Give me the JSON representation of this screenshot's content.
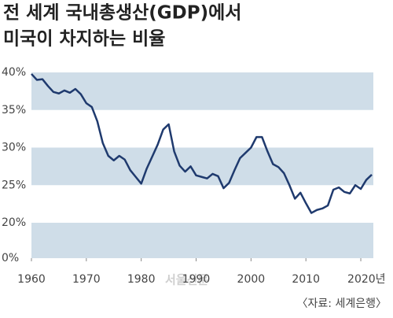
{
  "chart_data": {
    "type": "line",
    "title": [
      "전 세계 국내총생산(GDP)에서",
      "미국이 차지하는 비율"
    ],
    "source": "〈자료: 세계은행〉",
    "watermark": "서울신문",
    "x": [
      1960,
      1961,
      1962,
      1963,
      1964,
      1965,
      1966,
      1967,
      1968,
      1969,
      1970,
      1971,
      1972,
      1973,
      1974,
      1975,
      1976,
      1977,
      1978,
      1979,
      1980,
      1981,
      1982,
      1983,
      1984,
      1985,
      1986,
      1987,
      1988,
      1989,
      1990,
      1991,
      1992,
      1993,
      1994,
      1995,
      1996,
      1997,
      1998,
      1999,
      2000,
      2001,
      2002,
      2003,
      2004,
      2005,
      2006,
      2007,
      2008,
      2009,
      2010,
      2011,
      2012,
      2013,
      2014,
      2015,
      2016,
      2017,
      2018,
      2019,
      2020,
      2021,
      2022
    ],
    "series": [
      {
        "color": "#1f3a6e",
        "values": [
          39.8,
          39.0,
          39.1,
          38.2,
          37.4,
          37.2,
          37.6,
          37.3,
          37.8,
          37.1,
          35.9,
          35.4,
          33.5,
          30.6,
          28.9,
          28.3,
          28.9,
          28.4,
          27.0,
          26.1,
          25.2,
          27.2,
          28.8,
          30.4,
          32.4,
          33.1,
          29.5,
          27.6,
          26.8,
          27.5,
          26.3,
          26.1,
          25.9,
          26.5,
          26.2,
          24.6,
          25.3,
          27.0,
          28.6,
          29.3,
          30.0,
          31.4,
          31.4,
          29.5,
          27.8,
          27.4,
          26.6,
          25.0,
          23.2,
          24.0,
          22.6,
          21.3,
          21.7,
          21.9,
          22.3,
          24.4,
          24.7,
          24.1,
          23.9,
          25.0,
          24.5,
          25.7,
          26.4
        ]
      }
    ],
    "xlim": [
      1960,
      2022
    ],
    "xticks": [
      1960,
      1970,
      1980,
      1990,
      2000,
      2010,
      {
        "value": 2020,
        "label": "2020년"
      }
    ],
    "ylim": [
      0,
      40
    ],
    "axis_break": [
      0,
      20
    ],
    "yticks": [
      {
        "value": 0,
        "label": "0%"
      },
      {
        "value": 20,
        "label": "20%"
      },
      {
        "value": 25,
        "label": "25%"
      },
      {
        "value": 30,
        "label": "30%"
      },
      {
        "value": 35,
        "label": "35%"
      },
      {
        "value": 40,
        "label": "40%"
      }
    ],
    "shaded_bands": [
      [
        35,
        40
      ],
      [
        25,
        30
      ],
      [
        0,
        20
      ]
    ],
    "band_color": "#cfdde8"
  }
}
